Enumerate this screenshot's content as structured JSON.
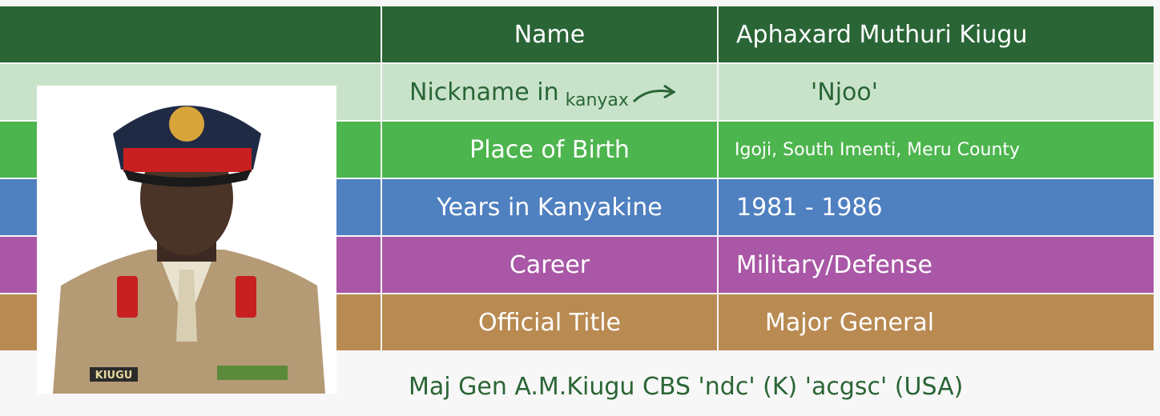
{
  "table": {
    "rows": [
      {
        "label": "Name",
        "value": "Aphaxard Muthuri Kiugu"
      },
      {
        "label": "Nickname in",
        "label_sub": "kanyax",
        "value": "'Njoo'"
      },
      {
        "label": "Place of Birth",
        "value": "Igoji, South Imenti, Meru County"
      },
      {
        "label": "Years in Kanyakine",
        "value": "1981 - 1986"
      },
      {
        "label": "Career",
        "value": "Military/Defense"
      },
      {
        "label": "Official Title",
        "value": "Major General"
      }
    ]
  },
  "photo": {
    "name_tag": "KIUGU"
  },
  "caption": "Maj Gen A.M.Kiugu CBS 'ndc' (K) 'acgsc' (USA)"
}
